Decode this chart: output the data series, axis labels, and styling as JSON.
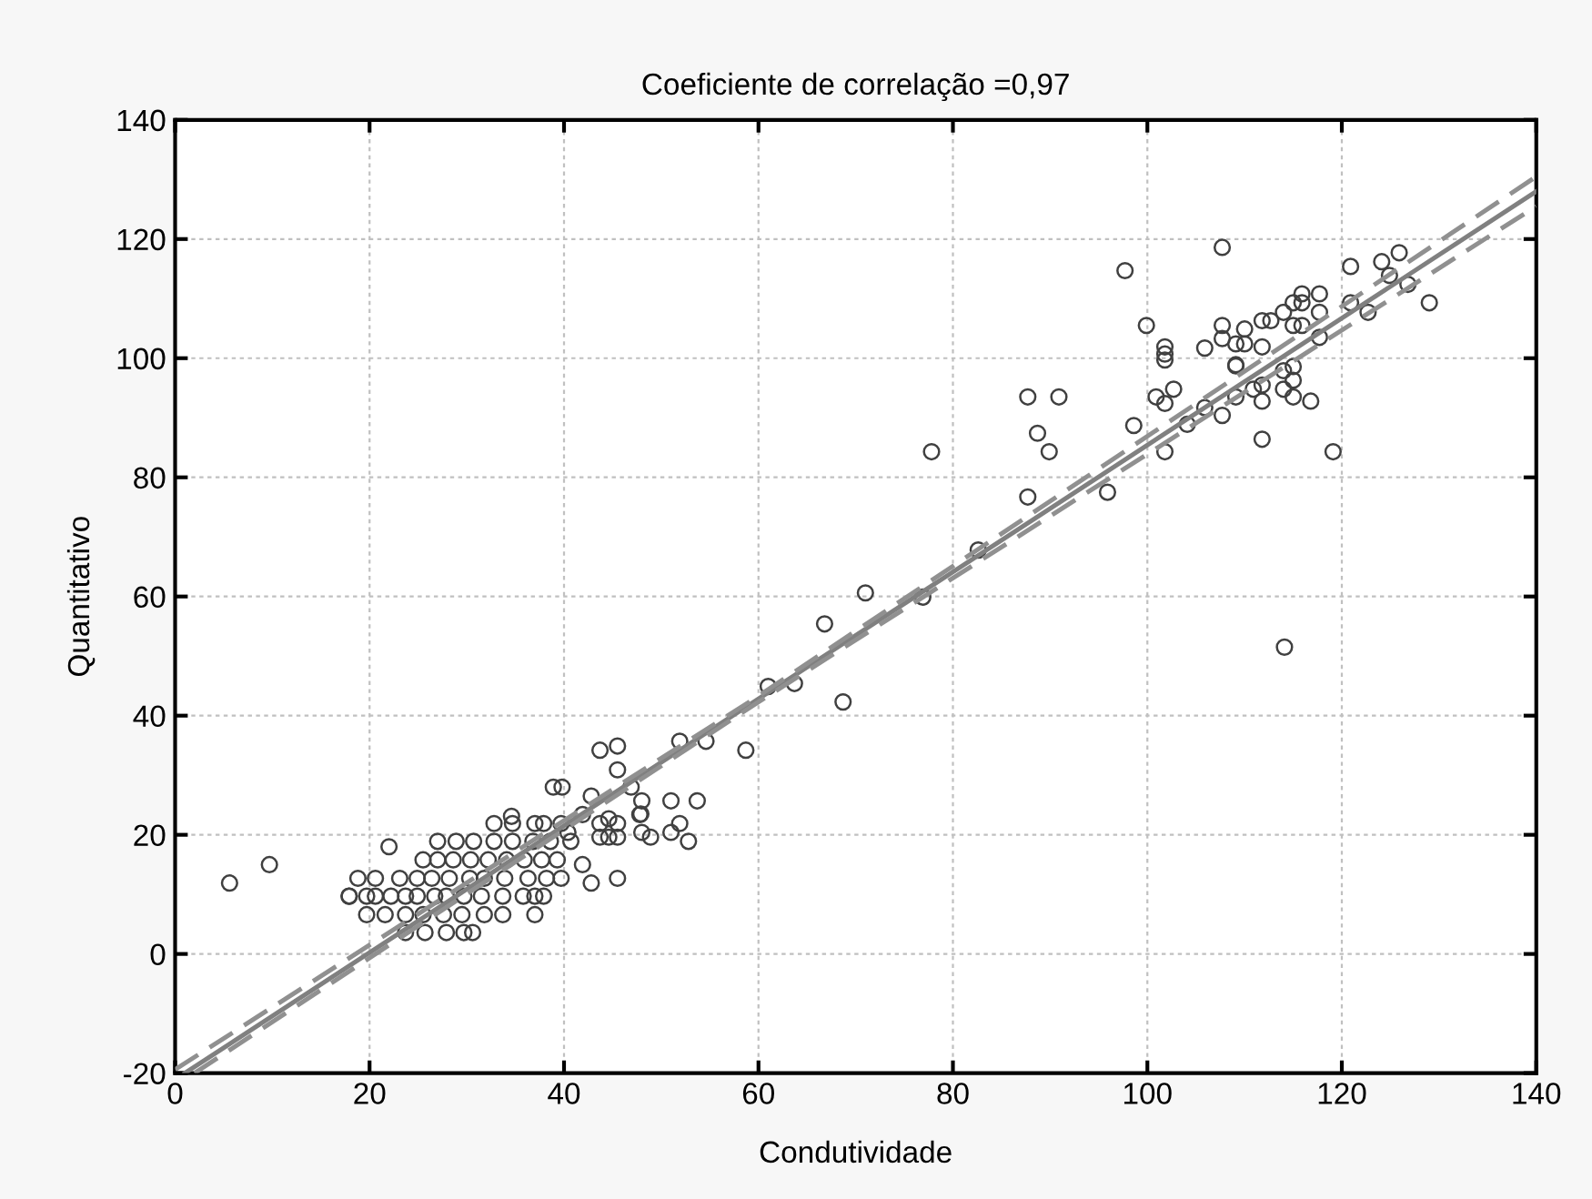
{
  "chart_data": {
    "type": "scatter",
    "title": "Coeficiente de correlação =0,97",
    "xlabel": "Condutividade",
    "ylabel": "Quantitativo",
    "xlim": [
      0,
      140
    ],
    "ylim": [
      -20,
      140
    ],
    "xticks": [
      0,
      20,
      40,
      60,
      80,
      100,
      120,
      140
    ],
    "yticks": [
      -20,
      0,
      20,
      40,
      60,
      80,
      100,
      120,
      140
    ],
    "grid": true,
    "series": [
      {
        "marker": "circle",
        "color": "#404040",
        "x": [
          5.6,
          9.7,
          22,
          17.9,
          43.7,
          45.5,
          45.5,
          38.9,
          39.8,
          42.8,
          46.9,
          48.0,
          47.8,
          51.0,
          53.7,
          51.9,
          52.8,
          48.0,
          48.9,
          51.0,
          43.7,
          44.6,
          45.5,
          43.7,
          44.6,
          45.5,
          41.9,
          42.8,
          45.5,
          40.4,
          41.9,
          71.0,
          66.8,
          61.0,
          63.7,
          68.7,
          51.9,
          54.6,
          58.7,
          47.9,
          77.8,
          107.7,
          97.7,
          99.9,
          101.8,
          101.8,
          101.8,
          105.9,
          107.7,
          107.7,
          109.1,
          109.1,
          87.7,
          90.9,
          88.7,
          89.9,
          100.9,
          102.7,
          101.8,
          98.6,
          101.8,
          105.9,
          107.7,
          104.1,
          87.7,
          95.9,
          82.6,
          76.9,
          110.0,
          110.0,
          109.1,
          109.1,
          110.9,
          111.8,
          112.7,
          111.8,
          111.8,
          111.8,
          111.8,
          114.0,
          115.0,
          115.9,
          115.9,
          117.7,
          117.7,
          115.0,
          115.9,
          117.7,
          114.0,
          115.0,
          115.0,
          114.0,
          115.0,
          116.8,
          119.1,
          120.9,
          124.1,
          125.9,
          124.9,
          126.8,
          129.0,
          120.9,
          122.7,
          114.1,
          23.7,
          25.7,
          27.9,
          29.7,
          30.6,
          17.9,
          19.7,
          20.6,
          22.2,
          23.7,
          24.9,
          26.7,
          27.9,
          29.7,
          31.5,
          33.7,
          35.8,
          37.0,
          37.9,
          18.8,
          20.6,
          23.1,
          24.9,
          26.4,
          28.2,
          30.3,
          31.8,
          33.9,
          36.3,
          38.2,
          39.7,
          25.5,
          27.0,
          28.6,
          30.4,
          32.2,
          34.1,
          35.9,
          37.7,
          39.3,
          27.0,
          28.9,
          30.7,
          32.8,
          34.7,
          36.8,
          38.6,
          40.7,
          32.8,
          34.7,
          37.0,
          37.9,
          39.7,
          19.7,
          21.6,
          23.7,
          25.5,
          27.6,
          29.5,
          31.8,
          33.7,
          37.0,
          34.6
        ],
        "values": [
          11.9,
          15.0,
          18,
          9.7,
          34.2,
          34.9,
          30.9,
          28.0,
          28.0,
          26.5,
          28.0,
          25.7,
          23.4,
          25.7,
          25.7,
          21.9,
          18.9,
          20.4,
          19.6,
          20.4,
          21.9,
          22.7,
          21.9,
          19.6,
          19.6,
          19.6,
          15.0,
          11.9,
          12.7,
          20.4,
          23.4,
          60.6,
          55.4,
          44.9,
          45.4,
          42.3,
          35.7,
          35.7,
          34.2,
          23.5,
          84.3,
          118.6,
          114.7,
          105.5,
          101.9,
          100.7,
          99.7,
          101.7,
          105.5,
          103.3,
          102.4,
          98.7,
          93.5,
          93.5,
          87.4,
          84.3,
          93.5,
          94.8,
          92.4,
          88.7,
          84.3,
          91.7,
          90.4,
          88.9,
          76.7,
          77.5,
          67.8,
          59.9,
          104.9,
          102.4,
          98.9,
          93.5,
          94.8,
          106.3,
          106.3,
          101.9,
          95.5,
          92.8,
          86.4,
          107.7,
          109.3,
          110.8,
          109.3,
          110.8,
          107.7,
          105.5,
          105.5,
          103.5,
          97.9,
          98.6,
          96.3,
          94.8,
          93.5,
          92.8,
          84.3,
          115.4,
          116.2,
          117.7,
          113.9,
          112.4,
          109.3,
          109.3,
          107.7,
          51.5,
          3.6,
          3.6,
          3.6,
          3.6,
          3.6,
          9.7,
          9.7,
          9.7,
          9.7,
          9.7,
          9.7,
          9.7,
          9.7,
          9.7,
          9.7,
          9.7,
          9.7,
          9.7,
          9.7,
          12.7,
          12.7,
          12.7,
          12.7,
          12.7,
          12.7,
          12.7,
          12.7,
          12.7,
          12.7,
          12.7,
          12.7,
          15.8,
          15.8,
          15.8,
          15.8,
          15.8,
          15.8,
          15.8,
          15.8,
          15.8,
          18.9,
          18.9,
          18.9,
          18.9,
          18.9,
          18.9,
          18.9,
          18.9,
          21.9,
          21.9,
          21.9,
          21.9,
          21.9,
          6.6,
          6.6,
          6.6,
          6.6,
          6.6,
          6.6,
          6.6,
          6.6,
          6.6,
          23.1
        ]
      },
      {
        "type": "line",
        "line_style": "solid",
        "color": "#808080",
        "x": [
          1,
          140
        ],
        "values": [
          -20,
          128
        ]
      },
      {
        "type": "line",
        "line_style": "dashed",
        "color": "#909090",
        "x": [
          0,
          60,
          140
        ],
        "values": [
          -19.4,
          43.3,
          130.5
        ]
      },
      {
        "type": "line",
        "line_style": "dashed",
        "color": "#909090",
        "x": [
          2,
          60,
          140
        ],
        "values": [
          -20,
          42.3,
          125.5
        ]
      }
    ]
  }
}
